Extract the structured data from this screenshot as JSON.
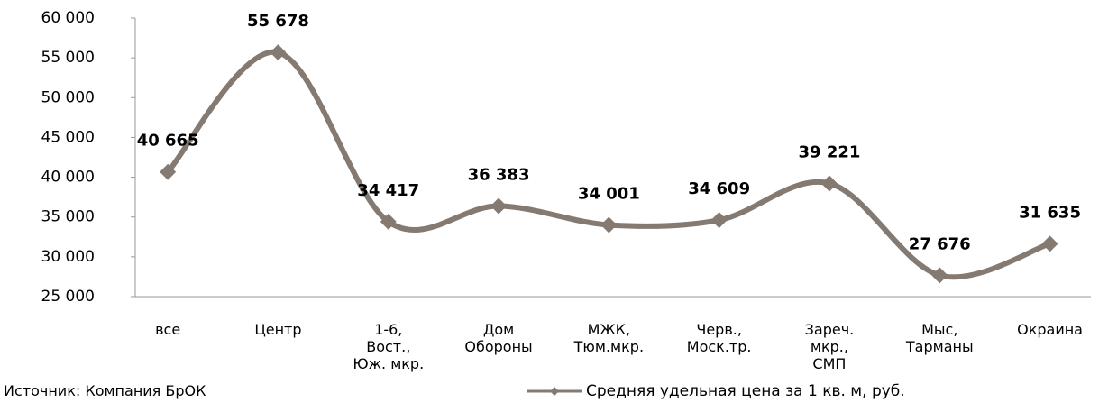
{
  "chart_data": {
    "type": "line",
    "categories": [
      "все",
      "Центр",
      "1-6,\nВост.,\nЮж. мкр.",
      "Дом\nОбороны",
      "МЖК,\nТюм.мкр.",
      "Черв.,\nМоск.тр.",
      "Зареч.\nмкр.,\nСМП",
      "Мыс,\nТарманы",
      "Окраина"
    ],
    "series": [
      {
        "name": "Средняя удельная цена за 1 кв. м, руб.",
        "color": "#857a71",
        "values": [
          40665,
          55678,
          34417,
          36383,
          34001,
          34609,
          39221,
          27676,
          31635
        ],
        "value_labels": [
          "40 665",
          "55 678",
          "34 417",
          "36 383",
          "34 001",
          "34 609",
          "39 221",
          "27 676",
          "31 635"
        ]
      }
    ],
    "ylim": [
      25000,
      60000
    ],
    "yticks": [
      {
        "value": 25000,
        "label": "25 000"
      },
      {
        "value": 30000,
        "label": "30 000"
      },
      {
        "value": 35000,
        "label": "35 000"
      },
      {
        "value": 40000,
        "label": "40 000"
      },
      {
        "value": 45000,
        "label": "45 000"
      },
      {
        "value": 50000,
        "label": "50 000"
      },
      {
        "value": 55000,
        "label": "55 000"
      },
      {
        "value": 60000,
        "label": "60 000"
      }
    ],
    "legend": "bottom",
    "source": "Источник: Компания БрОК"
  }
}
